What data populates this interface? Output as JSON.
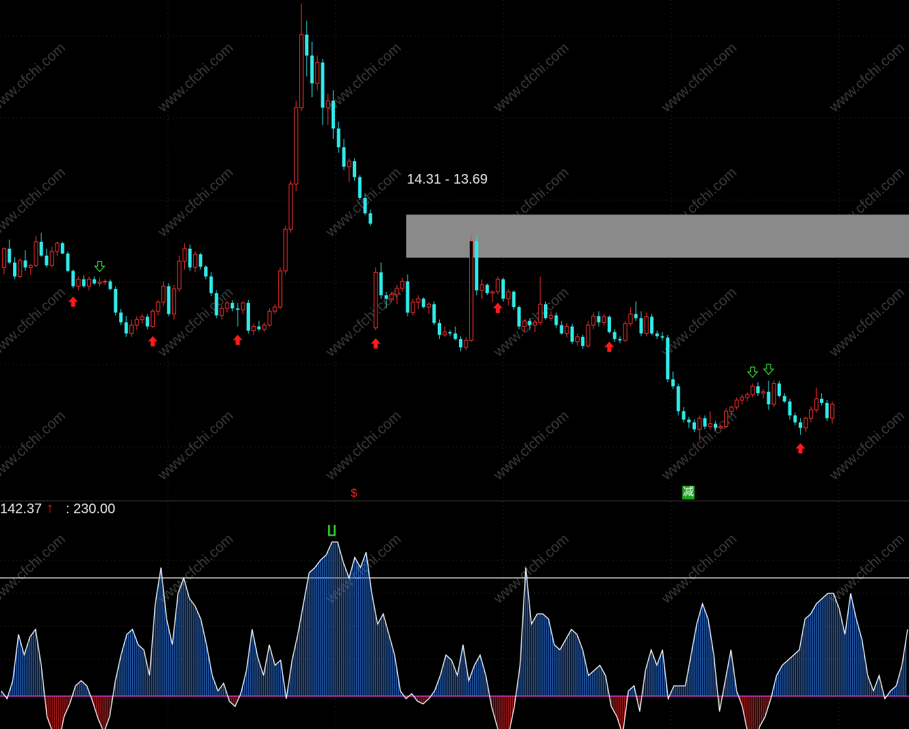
{
  "chart_data": {
    "type": "candlestick",
    "panels": [
      "price",
      "indicator"
    ],
    "colors": {
      "up": "#ff3030",
      "down": "#30e8e8",
      "background": "#000000",
      "zone": "#8a8a8a",
      "indicator_pos_bar": "#2a6fd6",
      "indicator_neg_bar": "#d02020",
      "indicator_line": "#ffffff",
      "zero_line": "#d040d0",
      "up_arrow": "#ff1a1a",
      "down_arrow": "#30d030"
    },
    "watermark": "www.cfchi.com",
    "zone": {
      "high": 14.31,
      "low": 13.69,
      "label": "14.31 - 13.69"
    },
    "indicator": {
      "value_text": "142.37",
      "level_text": ": 230.00",
      "level": 230.0,
      "top_marker": "∐"
    },
    "marks": {
      "s_marker": "$",
      "jian_marker": "减"
    },
    "candles": [
      [
        13.55,
        13.84,
        13.45,
        13.82
      ],
      [
        13.82,
        13.95,
        13.6,
        13.62
      ],
      [
        13.62,
        13.7,
        13.38,
        13.42
      ],
      [
        13.42,
        13.68,
        13.4,
        13.65
      ],
      [
        13.65,
        13.8,
        13.5,
        13.55
      ],
      [
        13.55,
        13.6,
        13.44,
        13.58
      ],
      [
        13.58,
        14.0,
        13.55,
        13.92
      ],
      [
        13.92,
        14.05,
        13.7,
        13.72
      ],
      [
        13.72,
        13.82,
        13.55,
        13.58
      ],
      [
        13.58,
        13.85,
        13.55,
        13.78
      ],
      [
        13.78,
        13.92,
        13.72,
        13.9
      ],
      [
        13.9,
        13.92,
        13.74,
        13.75
      ],
      [
        13.75,
        13.78,
        13.48,
        13.5
      ],
      [
        13.5,
        13.52,
        13.25,
        13.28
      ],
      [
        13.28,
        13.42,
        13.22,
        13.38
      ],
      [
        13.38,
        13.44,
        13.26,
        13.28
      ],
      [
        13.28,
        13.42,
        13.22,
        13.38
      ],
      [
        13.38,
        13.42,
        13.3,
        13.32
      ],
      [
        13.32,
        13.4,
        13.28,
        13.34
      ],
      [
        13.34,
        13.38,
        13.3,
        13.35
      ],
      [
        13.35,
        13.38,
        13.22,
        13.24
      ],
      [
        13.24,
        13.28,
        12.86,
        12.9
      ],
      [
        12.9,
        12.95,
        12.72,
        12.76
      ],
      [
        12.76,
        12.85,
        12.55,
        12.6
      ],
      [
        12.6,
        12.8,
        12.55,
        12.72
      ],
      [
        12.72,
        12.85,
        12.65,
        12.8
      ],
      [
        12.8,
        12.88,
        12.74,
        12.84
      ],
      [
        12.84,
        12.88,
        12.66,
        12.7
      ],
      [
        12.7,
        12.95,
        12.68,
        12.92
      ],
      [
        12.92,
        13.08,
        12.86,
        13.05
      ],
      [
        13.05,
        13.35,
        13.0,
        13.28
      ],
      [
        13.28,
        13.32,
        12.85,
        12.88
      ],
      [
        12.88,
        13.3,
        12.8,
        13.24
      ],
      [
        13.24,
        13.72,
        13.2,
        13.64
      ],
      [
        13.64,
        13.9,
        13.52,
        13.82
      ],
      [
        13.82,
        13.88,
        13.5,
        13.55
      ],
      [
        13.55,
        13.78,
        13.48,
        13.74
      ],
      [
        13.74,
        13.76,
        13.52,
        13.56
      ],
      [
        13.56,
        13.58,
        13.38,
        13.42
      ],
      [
        13.42,
        13.48,
        13.14,
        13.18
      ],
      [
        13.18,
        13.22,
        12.82,
        12.86
      ],
      [
        12.86,
        13.0,
        12.8,
        12.96
      ],
      [
        12.96,
        13.06,
        12.9,
        13.04
      ],
      [
        13.04,
        13.08,
        12.92,
        12.96
      ],
      [
        12.96,
        13.04,
        12.7,
        12.94
      ],
      [
        12.94,
        13.06,
        12.88,
        13.04
      ],
      [
        13.04,
        13.08,
        12.6,
        12.64
      ],
      [
        12.64,
        12.74,
        12.58,
        12.7
      ],
      [
        12.7,
        12.78,
        12.64,
        12.66
      ],
      [
        12.66,
        12.76,
        12.62,
        12.72
      ],
      [
        12.72,
        12.96,
        12.7,
        12.92
      ],
      [
        12.92,
        13.02,
        12.88,
        12.98
      ],
      [
        12.98,
        13.55,
        12.95,
        13.5
      ],
      [
        13.5,
        14.15,
        13.45,
        14.1
      ],
      [
        14.1,
        14.8,
        14.05,
        14.75
      ],
      [
        14.75,
        15.95,
        14.65,
        15.85
      ],
      [
        15.85,
        17.35,
        15.8,
        16.9
      ],
      [
        16.9,
        17.1,
        16.3,
        16.6
      ],
      [
        16.6,
        16.8,
        16.0,
        16.2
      ],
      [
        16.2,
        16.6,
        16.1,
        16.5
      ],
      [
        16.5,
        16.55,
        15.6,
        15.85
      ],
      [
        15.85,
        16.05,
        15.6,
        15.95
      ],
      [
        15.95,
        16.1,
        15.4,
        15.55
      ],
      [
        15.55,
        15.65,
        15.2,
        15.28
      ],
      [
        15.28,
        15.4,
        14.95,
        15.0
      ],
      [
        15.0,
        15.12,
        14.78,
        15.08
      ],
      [
        15.08,
        15.12,
        14.8,
        14.85
      ],
      [
        14.85,
        14.88,
        14.52,
        14.55
      ],
      [
        14.55,
        14.6,
        14.3,
        14.33
      ],
      [
        14.33,
        14.38,
        14.15,
        14.18
      ],
      [
        12.68,
        13.55,
        12.65,
        13.48
      ],
      [
        13.48,
        13.62,
        13.1,
        13.15
      ],
      [
        13.15,
        13.2,
        12.96,
        13.1
      ],
      [
        13.1,
        13.2,
        13.05,
        13.16
      ],
      [
        13.16,
        13.3,
        13.02,
        13.25
      ],
      [
        13.25,
        13.4,
        13.2,
        13.35
      ],
      [
        13.35,
        13.45,
        12.85,
        12.9
      ],
      [
        12.9,
        13.1,
        12.86,
        13.05
      ],
      [
        13.05,
        13.15,
        12.95,
        13.1
      ],
      [
        13.1,
        13.12,
        12.96,
        12.98
      ],
      [
        12.98,
        13.05,
        12.88,
        13.02
      ],
      [
        13.02,
        13.06,
        12.72,
        12.75
      ],
      [
        12.75,
        12.8,
        12.52,
        12.58
      ],
      [
        12.58,
        12.7,
        12.55,
        12.62
      ],
      [
        12.62,
        12.65,
        12.56,
        12.6
      ],
      [
        12.6,
        12.7,
        12.5,
        12.52
      ],
      [
        12.52,
        12.56,
        12.34,
        12.4
      ],
      [
        12.4,
        12.55,
        12.36,
        12.5
      ],
      [
        12.5,
        14.02,
        12.48,
        13.93
      ],
      [
        13.93,
        14.0,
        13.15,
        13.22
      ],
      [
        13.22,
        13.38,
        13.1,
        13.3
      ],
      [
        13.3,
        13.32,
        13.15,
        13.18
      ],
      [
        13.18,
        13.22,
        13.05,
        13.2
      ],
      [
        13.2,
        13.42,
        13.16,
        13.38
      ],
      [
        13.38,
        13.4,
        13.06,
        13.1
      ],
      [
        13.1,
        13.24,
        13.0,
        13.2
      ],
      [
        13.2,
        13.22,
        12.94,
        12.98
      ],
      [
        12.98,
        13.0,
        12.66,
        12.7
      ],
      [
        12.7,
        12.8,
        12.62,
        12.78
      ],
      [
        12.78,
        12.82,
        12.65,
        12.72
      ],
      [
        12.72,
        12.8,
        12.62,
        12.76
      ],
      [
        12.76,
        13.42,
        12.72,
        13.02
      ],
      [
        13.02,
        13.06,
        12.8,
        12.82
      ],
      [
        12.82,
        12.92,
        12.78,
        12.86
      ],
      [
        12.86,
        12.9,
        12.68,
        12.72
      ],
      [
        12.72,
        12.78,
        12.58,
        12.6
      ],
      [
        12.6,
        12.75,
        12.54,
        12.7
      ],
      [
        12.7,
        12.74,
        12.45,
        12.48
      ],
      [
        12.48,
        12.6,
        12.42,
        12.55
      ],
      [
        12.55,
        12.58,
        12.38,
        12.42
      ],
      [
        12.42,
        12.78,
        12.4,
        12.72
      ],
      [
        12.72,
        12.9,
        12.66,
        12.85
      ],
      [
        12.85,
        12.92,
        12.7,
        12.76
      ],
      [
        12.76,
        12.88,
        12.72,
        12.84
      ],
      [
        12.84,
        12.86,
        12.6,
        12.62
      ],
      [
        12.62,
        12.66,
        12.48,
        12.52
      ],
      [
        12.52,
        12.56,
        12.46,
        12.5
      ],
      [
        12.5,
        12.78,
        12.48,
        12.74
      ],
      [
        12.74,
        12.98,
        12.7,
        12.88
      ],
      [
        12.88,
        13.06,
        12.78,
        12.82
      ],
      [
        12.82,
        12.92,
        12.56,
        12.6
      ],
      [
        12.6,
        12.9,
        12.56,
        12.84
      ],
      [
        12.84,
        12.88,
        12.58,
        12.6
      ],
      [
        12.6,
        12.64,
        12.52,
        12.56
      ],
      [
        12.56,
        12.62,
        12.5,
        12.54
      ],
      [
        12.54,
        12.58,
        11.9,
        11.94
      ],
      [
        11.94,
        12.05,
        11.8,
        11.84
      ],
      [
        11.84,
        11.88,
        11.42,
        11.48
      ],
      [
        11.48,
        11.54,
        11.32,
        11.36
      ],
      [
        11.36,
        11.4,
        11.24,
        11.32
      ],
      [
        11.32,
        11.36,
        11.18,
        11.22
      ],
      [
        11.22,
        11.42,
        11.06,
        11.38
      ],
      [
        11.38,
        11.42,
        11.22,
        11.26
      ],
      [
        11.26,
        11.48,
        11.22,
        11.3
      ],
      [
        11.3,
        11.34,
        11.2,
        11.24
      ],
      [
        11.24,
        11.28,
        11.22,
        11.26
      ],
      [
        11.26,
        11.52,
        11.24,
        11.48
      ],
      [
        11.48,
        11.56,
        11.4,
        11.54
      ],
      [
        11.54,
        11.68,
        11.5,
        11.64
      ],
      [
        11.64,
        11.72,
        11.58,
        11.68
      ],
      [
        11.68,
        11.75,
        11.62,
        11.72
      ],
      [
        11.72,
        11.88,
        11.68,
        11.84
      ],
      [
        11.84,
        11.9,
        11.7,
        11.74
      ],
      [
        11.74,
        11.8,
        11.66,
        11.76
      ],
      [
        11.76,
        11.92,
        11.5,
        11.58
      ],
      [
        11.58,
        11.92,
        11.54,
        11.88
      ],
      [
        11.88,
        11.92,
        11.68,
        11.7
      ],
      [
        11.7,
        11.74,
        11.6,
        11.62
      ],
      [
        11.62,
        11.66,
        11.36,
        11.42
      ],
      [
        11.42,
        11.46,
        11.28,
        11.32
      ],
      [
        11.32,
        11.38,
        11.14,
        11.24
      ],
      [
        11.24,
        11.4,
        11.18,
        11.38
      ],
      [
        11.38,
        11.55,
        11.32,
        11.5
      ],
      [
        11.5,
        11.82,
        11.46,
        11.66
      ],
      [
        11.66,
        11.74,
        11.56,
        11.6
      ],
      [
        11.6,
        11.64,
        11.34,
        11.38
      ],
      [
        11.38,
        11.62,
        11.3,
        11.58
      ]
    ],
    "signals": {
      "up_arrows": [
        13,
        28,
        44,
        70,
        93,
        114,
        150
      ],
      "down_arrows": [
        18,
        141,
        144
      ]
    },
    "indicator_series": [
      10,
      -5,
      30,
      120,
      80,
      115,
      130,
      60,
      -40,
      -70,
      -95,
      -40,
      -15,
      20,
      30,
      20,
      -10,
      -45,
      -70,
      -40,
      30,
      80,
      120,
      130,
      100,
      90,
      40,
      180,
      250,
      150,
      100,
      200,
      230,
      190,
      175,
      150,
      100,
      40,
      10,
      25,
      -10,
      -20,
      5,
      50,
      130,
      75,
      40,
      100,
      60,
      70,
      -5,
      70,
      120,
      180,
      240,
      250,
      265,
      275,
      300,
      300,
      260,
      230,
      270,
      250,
      280,
      200,
      140,
      160,
      120,
      80,
      10,
      -5,
      5,
      -10,
      -15,
      -5,
      10,
      40,
      80,
      70,
      40,
      100,
      30,
      60,
      80,
      40,
      -20,
      -60,
      -100,
      -75,
      -20,
      60,
      250,
      140,
      160,
      160,
      150,
      100,
      90,
      110,
      130,
      120,
      90,
      40,
      50,
      60,
      40,
      -20,
      -40,
      -75,
      10,
      20,
      -30,
      50,
      90,
      60,
      90,
      -5,
      20,
      20,
      20,
      80,
      140,
      180,
      150,
      80,
      -30,
      30,
      90,
      10,
      -20,
      -75,
      -100,
      -60,
      -40,
      -5,
      40,
      60,
      70,
      80,
      90,
      150,
      160,
      180,
      190,
      200,
      200,
      170,
      120,
      200,
      150,
      110,
      40,
      10,
      40,
      -5,
      10,
      20,
      60,
      130
    ]
  }
}
